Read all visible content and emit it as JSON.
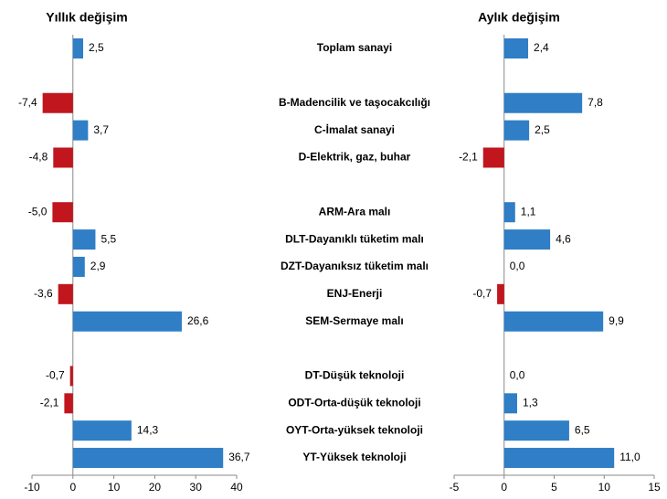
{
  "chart_data": [
    {
      "type": "barh",
      "title": "Yıllık değişim",
      "categories": [
        "Toplam sanayi",
        null,
        "B-Madencilik ve taşocakcılığı",
        "C-İmalat sanayi",
        "D-Elektrik, gaz, buhar",
        null,
        "ARM-Ara malı",
        "DLT-Dayanıklı tüketim malı",
        "DZT-Dayanıksız tüketim malı",
        "ENJ-Enerji",
        "SEM-Sermaye malı",
        null,
        "DT-Düşük teknoloji",
        "ODT-Orta-düşük teknoloji",
        "OYT-Orta-yüksek teknoloji",
        "YT-Yüksek teknoloji"
      ],
      "values": [
        2.5,
        null,
        -7.4,
        3.7,
        -4.8,
        null,
        -5.0,
        5.5,
        2.9,
        -3.6,
        26.6,
        null,
        -0.7,
        -2.1,
        14.3,
        36.7
      ],
      "value_labels": [
        "2,5",
        null,
        "-7,4",
        "3,7",
        "-4,8",
        null,
        "-5,0",
        "5,5",
        "2,9",
        "-3,6",
        "26,6",
        null,
        "-0,7",
        "-2,1",
        "14,3",
        "36,7"
      ],
      "color": "#2f7ec6",
      "negative_color": "#c1161d",
      "xlim": [
        -10,
        40
      ],
      "xticks": [
        -10,
        0,
        10,
        20,
        30,
        40
      ]
    },
    {
      "type": "barh",
      "title": "Aylık değişim",
      "values": [
        2.4,
        null,
        7.8,
        2.5,
        -2.1,
        null,
        1.1,
        4.6,
        0.0,
        -0.7,
        9.9,
        null,
        0.0,
        1.3,
        6.5,
        11.0
      ],
      "value_labels": [
        "2,4",
        null,
        "7,8",
        "2,5",
        "-2,1",
        null,
        "1,1",
        "4,6",
        "0,0",
        "-0,7",
        "9,9",
        null,
        "0,0",
        "1,3",
        "6,5",
        "11,0"
      ],
      "color": "#2f7ec6",
      "negative_color": "#c1161d",
      "xlim": [
        -5,
        15
      ],
      "xticks": [
        -5,
        0,
        5,
        10,
        15
      ]
    }
  ]
}
